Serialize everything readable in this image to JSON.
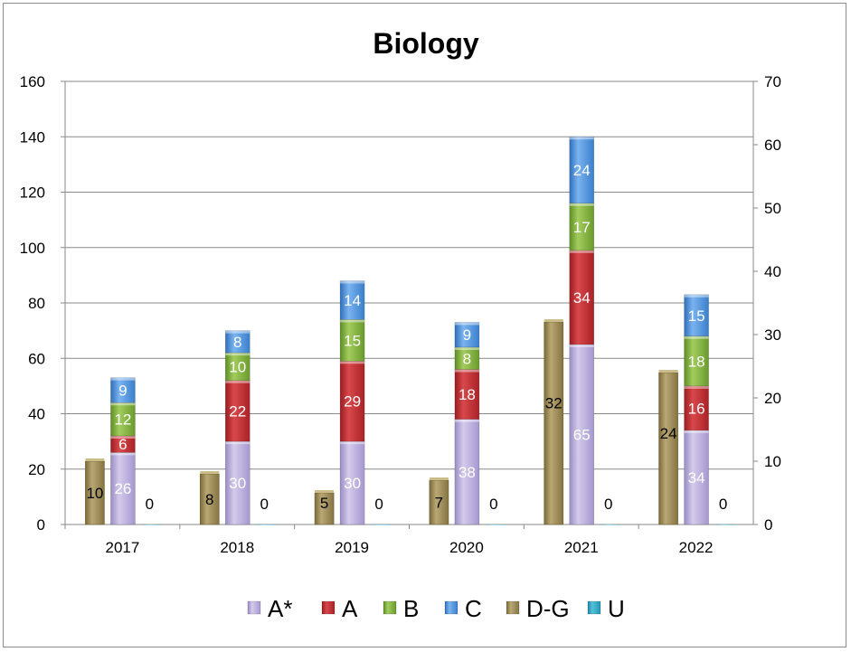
{
  "chart_data": {
    "type": "bar",
    "title": "Biology",
    "categories": [
      "2017",
      "2018",
      "2019",
      "2020",
      "2021",
      "2022"
    ],
    "y_left": {
      "ticks": [
        "0",
        "20",
        "40",
        "60",
        "80",
        "100",
        "120",
        "140",
        "160"
      ],
      "ylim": [
        0,
        160
      ]
    },
    "y_right": {
      "ticks": [
        "0",
        "10",
        "20",
        "30",
        "40",
        "50",
        "60",
        "70"
      ],
      "ylim": [
        0,
        70
      ]
    },
    "stack_series": [
      {
        "name": "A*",
        "color": "#b4a7d6",
        "values": [
          26,
          30,
          30,
          38,
          65,
          34
        ]
      },
      {
        "name": "A",
        "color": "#c0282d",
        "values": [
          6,
          22,
          29,
          18,
          34,
          16
        ]
      },
      {
        "name": "B",
        "color": "#7fb03a",
        "values": [
          12,
          10,
          15,
          8,
          17,
          18
        ]
      },
      {
        "name": "C",
        "color": "#4a8fd8",
        "values": [
          9,
          8,
          14,
          9,
          24,
          15
        ]
      }
    ],
    "secondary_series": [
      {
        "name": "D-G",
        "color": "#9c8b55",
        "axis": "right",
        "values": [
          10,
          8,
          5,
          7,
          32,
          24
        ]
      },
      {
        "name": "U",
        "color": "#2aa6c4",
        "axis": "right",
        "values": [
          0,
          0,
          0,
          0,
          0,
          0
        ]
      }
    ],
    "legend": {
      "position": "bottom",
      "entries": [
        "A*",
        "A",
        "B",
        "C",
        "D-G",
        "U"
      ]
    },
    "grid": true
  }
}
